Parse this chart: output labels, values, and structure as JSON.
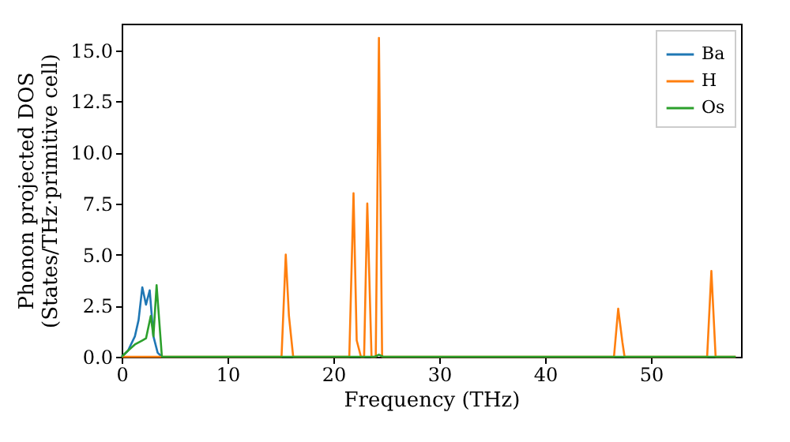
{
  "chart_data": {
    "type": "line",
    "xlabel": "Frequency (THz)",
    "ylabel": "Phonon projected DOS\n(States/THz·primitive cell)",
    "xlim": [
      0,
      58.5
    ],
    "ylim": [
      0,
      16.3
    ],
    "xticks": [
      0,
      10,
      20,
      30,
      40,
      50
    ],
    "yticks": [
      {
        "value": 0,
        "label": "0.0"
      },
      {
        "value": 2.5,
        "label": "2.5"
      },
      {
        "value": 5,
        "label": "5.0"
      },
      {
        "value": 7.5,
        "label": "7.5"
      },
      {
        "value": 10,
        "label": "10.0"
      },
      {
        "value": 12.5,
        "label": "12.5"
      },
      {
        "value": 15,
        "label": "15.0"
      }
    ],
    "legend": "top right",
    "grid": false,
    "line_style": "solid",
    "marker": "none",
    "series": [
      {
        "name": "Ba",
        "color": "#1f77b4",
        "x": [
          0,
          0.6,
          1.25,
          1.6,
          1.95,
          2.3,
          2.65,
          3.0,
          3.4,
          3.8
        ],
        "values": [
          0,
          0.3,
          1.0,
          1.8,
          3.4,
          2.55,
          3.25,
          1.0,
          0.2,
          0
        ]
      },
      {
        "name": "H",
        "color": "#ff7f0e",
        "x": [
          0,
          15.1,
          15.5,
          15.8,
          16.2,
          21.5,
          21.9,
          22.2,
          22.6,
          22.9,
          23.2,
          23.6,
          24.0,
          24.3,
          24.6,
          46.5,
          46.9,
          47.3,
          47.5,
          55.3,
          55.7,
          56.1,
          58
        ],
        "values": [
          0,
          0,
          5.0,
          2.0,
          0,
          0,
          8.0,
          0.8,
          0,
          0,
          7.5,
          0,
          0,
          15.6,
          0,
          0,
          2.35,
          0.7,
          0,
          0,
          4.2,
          0,
          0
        ]
      },
      {
        "name": "Os",
        "color": "#2ca02c",
        "x": [
          0,
          0.6,
          1.25,
          1.95,
          2.3,
          2.75,
          3.0,
          3.3,
          3.8,
          5,
          23.9,
          24.3,
          24.7,
          58
        ],
        "values": [
          0,
          0.3,
          0.6,
          0.8,
          0.9,
          2.0,
          1.0,
          3.5,
          0,
          0,
          0,
          0.1,
          0,
          0
        ]
      }
    ]
  }
}
